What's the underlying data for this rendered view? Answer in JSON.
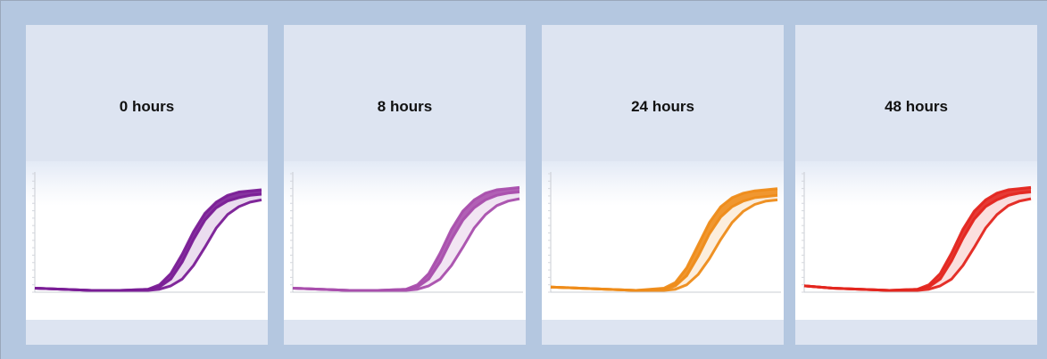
{
  "chart_data": [
    {
      "type": "line",
      "title": "0 hours",
      "color": "#7a1d96",
      "grid": false,
      "legend": "none",
      "series": [
        {
          "x": [
            0,
            5,
            10,
            15,
            20,
            22,
            24,
            26,
            28,
            30,
            32,
            34,
            36,
            38,
            40
          ],
          "y": [
            0.02,
            0.01,
            0.0,
            0.0,
            0.01,
            0.05,
            0.15,
            0.32,
            0.52,
            0.68,
            0.78,
            0.84,
            0.87,
            0.88,
            0.89
          ]
        },
        {
          "x": [
            0,
            5,
            10,
            15,
            20,
            22,
            24,
            26,
            28,
            30,
            32,
            34,
            36,
            38,
            40
          ],
          "y": [
            0.02,
            0.01,
            0.0,
            0.0,
            0.01,
            0.03,
            0.1,
            0.25,
            0.45,
            0.62,
            0.73,
            0.79,
            0.82,
            0.84,
            0.85
          ]
        },
        {
          "x": [
            0,
            5,
            10,
            15,
            20,
            22,
            24,
            26,
            28,
            30,
            32,
            34,
            36,
            38,
            40
          ],
          "y": [
            0.02,
            0.01,
            0.0,
            0.0,
            0.0,
            0.01,
            0.04,
            0.1,
            0.22,
            0.38,
            0.55,
            0.67,
            0.74,
            0.78,
            0.8
          ]
        }
      ]
    },
    {
      "type": "line",
      "title": "8 hours",
      "color": "#a94fad",
      "grid": false,
      "legend": "none",
      "series": [
        {
          "x": [
            0,
            5,
            10,
            15,
            20,
            22,
            24,
            26,
            28,
            30,
            32,
            34,
            36,
            38,
            40
          ],
          "y": [
            0.02,
            0.01,
            0.0,
            0.0,
            0.01,
            0.05,
            0.15,
            0.33,
            0.54,
            0.7,
            0.8,
            0.86,
            0.89,
            0.9,
            0.91
          ]
        },
        {
          "x": [
            0,
            5,
            10,
            15,
            20,
            22,
            24,
            26,
            28,
            30,
            32,
            34,
            36,
            38,
            40
          ],
          "y": [
            0.02,
            0.01,
            0.0,
            0.0,
            0.01,
            0.03,
            0.1,
            0.25,
            0.45,
            0.62,
            0.73,
            0.8,
            0.84,
            0.86,
            0.87
          ]
        },
        {
          "x": [
            0,
            5,
            10,
            15,
            20,
            22,
            24,
            26,
            28,
            30,
            32,
            34,
            36,
            38,
            40
          ],
          "y": [
            0.02,
            0.01,
            0.0,
            0.0,
            0.0,
            0.01,
            0.04,
            0.1,
            0.22,
            0.38,
            0.55,
            0.67,
            0.75,
            0.79,
            0.81
          ]
        }
      ]
    },
    {
      "type": "line",
      "title": "24 hours",
      "color": "#ee8c1a",
      "grid": false,
      "legend": "none",
      "series": [
        {
          "x": [
            0,
            5,
            10,
            15,
            20,
            22,
            24,
            26,
            28,
            30,
            32,
            34,
            36,
            38,
            40
          ],
          "y": [
            0.03,
            0.02,
            0.01,
            0.0,
            0.02,
            0.07,
            0.2,
            0.4,
            0.6,
            0.74,
            0.82,
            0.86,
            0.88,
            0.89,
            0.9
          ]
        },
        {
          "x": [
            0,
            5,
            10,
            15,
            20,
            22,
            24,
            26,
            28,
            30,
            32,
            34,
            36,
            38,
            40
          ],
          "y": [
            0.03,
            0.02,
            0.01,
            0.0,
            0.01,
            0.04,
            0.13,
            0.3,
            0.5,
            0.65,
            0.74,
            0.79,
            0.82,
            0.83,
            0.84
          ]
        },
        {
          "x": [
            0,
            5,
            10,
            15,
            20,
            22,
            24,
            26,
            28,
            30,
            32,
            34,
            36,
            38,
            40
          ],
          "y": [
            0.03,
            0.02,
            0.01,
            0.0,
            0.0,
            0.01,
            0.05,
            0.14,
            0.28,
            0.45,
            0.6,
            0.7,
            0.76,
            0.79,
            0.8
          ]
        }
      ]
    },
    {
      "type": "line",
      "title": "48 hours",
      "color": "#e3261f",
      "grid": false,
      "legend": "none",
      "series": [
        {
          "x": [
            0,
            5,
            10,
            15,
            20,
            22,
            24,
            26,
            28,
            30,
            32,
            34,
            36,
            38,
            40
          ],
          "y": [
            0.04,
            0.02,
            0.01,
            0.0,
            0.01,
            0.05,
            0.15,
            0.33,
            0.54,
            0.7,
            0.8,
            0.86,
            0.89,
            0.9,
            0.91
          ]
        },
        {
          "x": [
            0,
            5,
            10,
            15,
            20,
            22,
            24,
            26,
            28,
            30,
            32,
            34,
            36,
            38,
            40
          ],
          "y": [
            0.04,
            0.02,
            0.01,
            0.0,
            0.01,
            0.03,
            0.1,
            0.26,
            0.46,
            0.63,
            0.74,
            0.8,
            0.84,
            0.86,
            0.87
          ]
        },
        {
          "x": [
            0,
            5,
            10,
            15,
            20,
            22,
            24,
            26,
            28,
            30,
            32,
            34,
            36,
            38,
            40
          ],
          "y": [
            0.04,
            0.02,
            0.01,
            0.0,
            0.0,
            0.01,
            0.04,
            0.1,
            0.22,
            0.38,
            0.55,
            0.67,
            0.75,
            0.79,
            0.81
          ]
        }
      ]
    }
  ]
}
